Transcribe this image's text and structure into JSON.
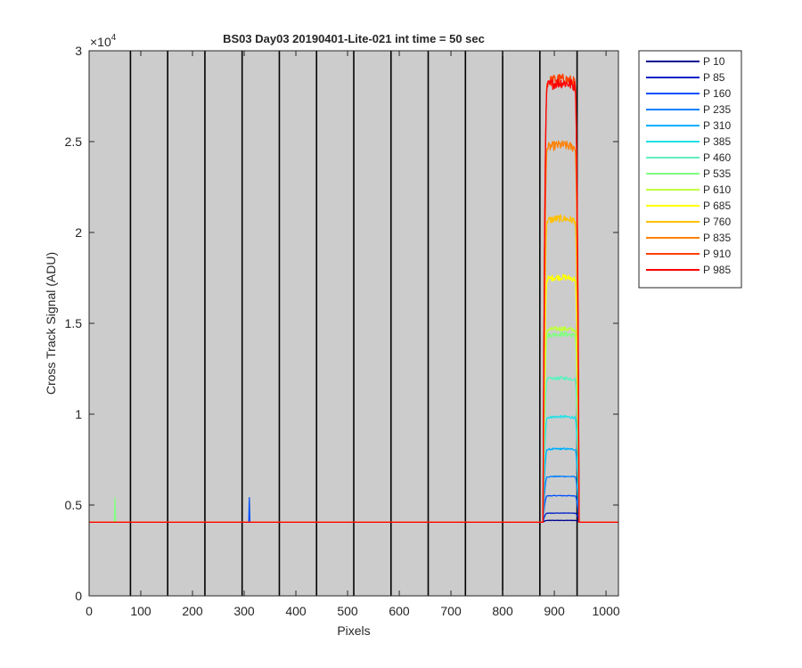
{
  "chart_data": {
    "type": "line",
    "title": "BS03 Day03 20190401-Lite-021 int time = 50 sec",
    "xlabel": "Pixels",
    "ylabel": "Cross Track Signal (ADU)",
    "y_exponent_label": "×10",
    "y_exponent": "4",
    "xlim": [
      0,
      1024
    ],
    "ylim": [
      0,
      30000
    ],
    "x_ticks": [
      0,
      100,
      200,
      300,
      400,
      500,
      600,
      700,
      800,
      900,
      1000
    ],
    "x_tick_labels": [
      "0",
      "100",
      "200",
      "300",
      "400",
      "500",
      "600",
      "700",
      "800",
      "900",
      "1000"
    ],
    "y_ticks": [
      0,
      5000,
      10000,
      15000,
      20000,
      25000,
      30000
    ],
    "y_tick_labels": [
      "0",
      "0.5",
      "1",
      "1.5",
      "2",
      "2.5",
      "3"
    ],
    "background_color": "#cccccc",
    "grid": false,
    "legend_position": "outside-right",
    "column_boundaries": [
      80,
      152,
      224,
      296,
      368,
      440,
      512,
      584,
      656,
      728,
      800,
      872,
      944
    ],
    "baseline": 4050,
    "band": {
      "x_start": 880,
      "x_end": 945
    },
    "series": [
      {
        "name": "P 10",
        "color": "#00008f",
        "plateau": 4150,
        "spike": null
      },
      {
        "name": "P 85",
        "color": "#0020c8",
        "plateau": 4550,
        "spike": null
      },
      {
        "name": "P 160",
        "color": "#0050ff",
        "plateau": 5500,
        "spike": {
          "x": 310,
          "y": 5400
        }
      },
      {
        "name": "P 235",
        "color": "#0080ff",
        "plateau": 6550,
        "spike": null
      },
      {
        "name": "P 310",
        "color": "#00b0ff",
        "plateau": 8050,
        "spike": null
      },
      {
        "name": "P 385",
        "color": "#20e0e8",
        "plateau": 9800,
        "spike": null
      },
      {
        "name": "P 460",
        "color": "#60f0c0",
        "plateau": 11900,
        "spike": null
      },
      {
        "name": "P 535",
        "color": "#80ff80",
        "plateau": 14300,
        "spike": {
          "x": 50,
          "y": 5400
        }
      },
      {
        "name": "P 610",
        "color": "#c0ff40",
        "plateau": 14600,
        "spike": null
      },
      {
        "name": "P 685",
        "color": "#ffff00",
        "plateau": 17400,
        "spike": null
      },
      {
        "name": "P 760",
        "color": "#ffc000",
        "plateau": 20600,
        "spike": null
      },
      {
        "name": "P 835",
        "color": "#ff8000",
        "plateau": 24600,
        "spike": null
      },
      {
        "name": "P 910",
        "color": "#ff4000",
        "plateau": 28200,
        "spike": null
      },
      {
        "name": "P 985",
        "color": "#ff0000",
        "plateau": 28000,
        "spike": null
      }
    ]
  }
}
